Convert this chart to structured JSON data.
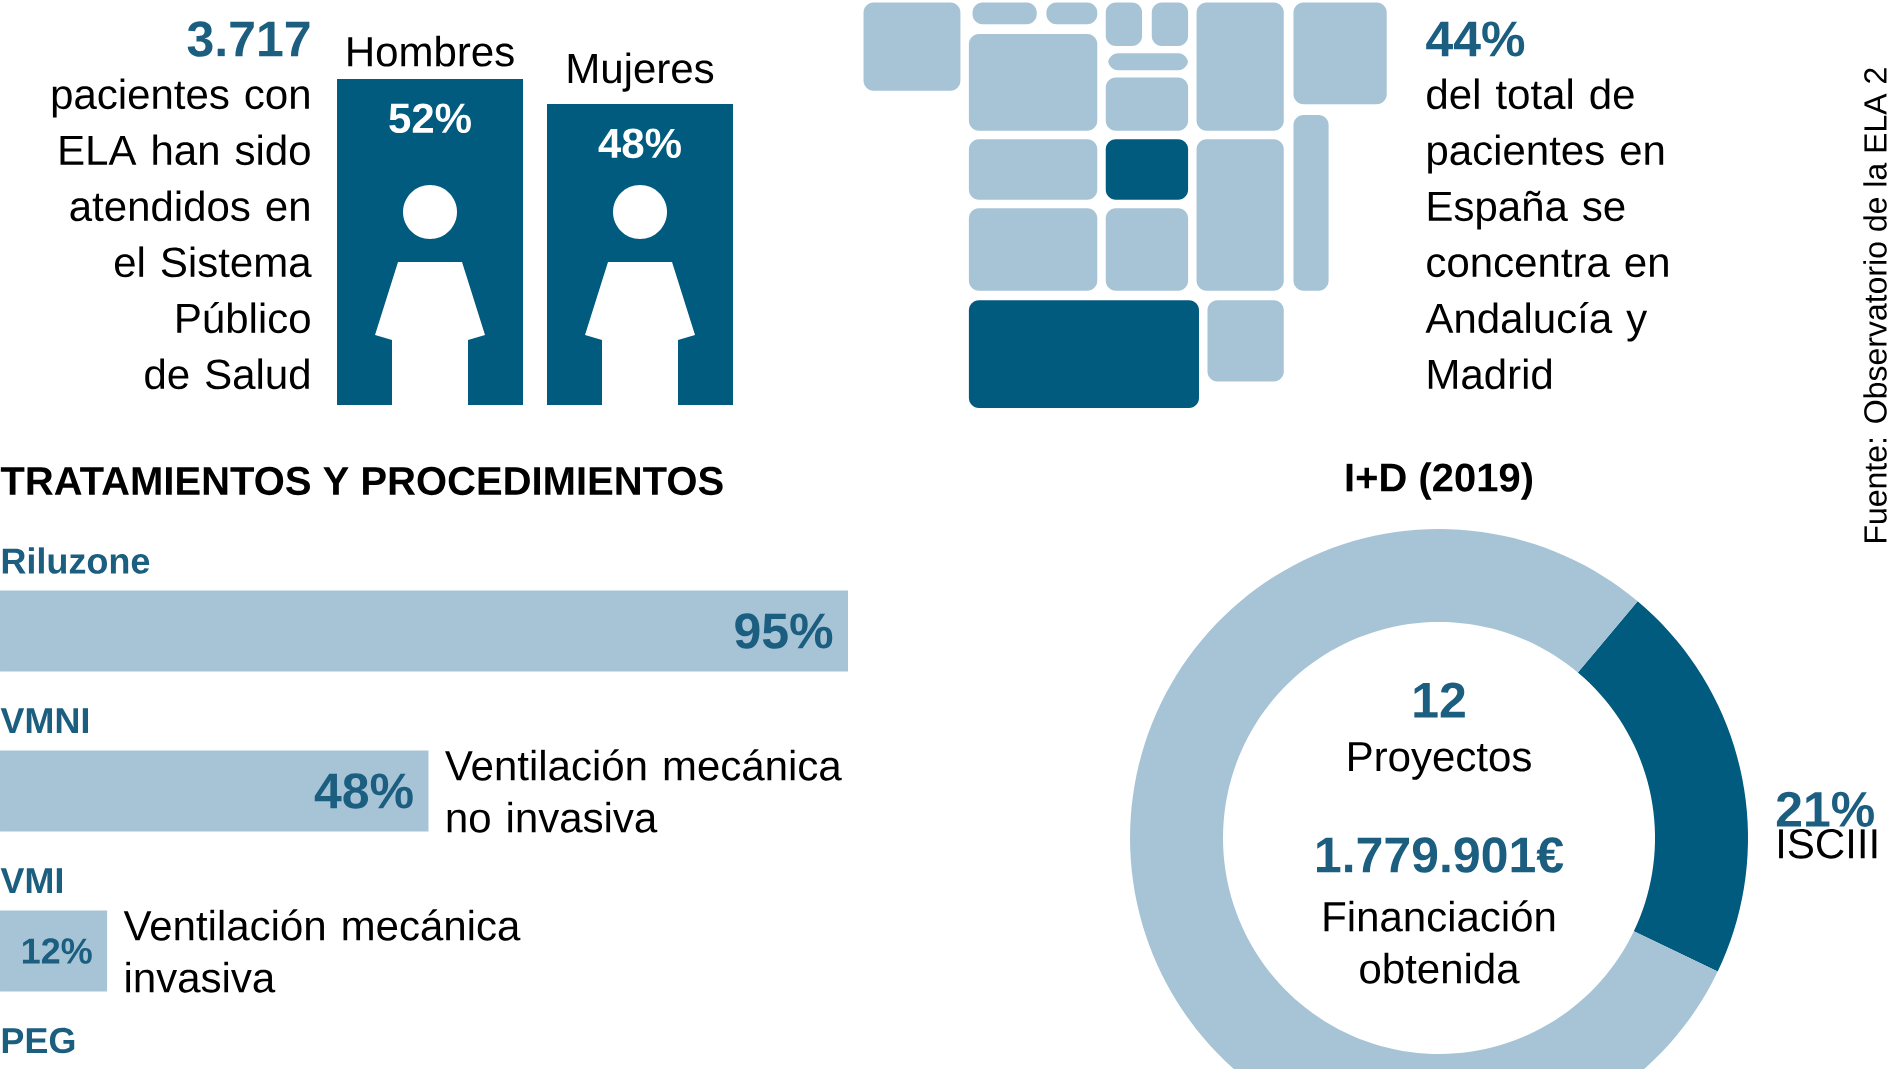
{
  "chart_data": [
    {
      "type": "bar",
      "categories": [
        "Hombres",
        "Mujeres"
      ],
      "values": [
        52,
        48
      ],
      "value_labels": [
        "52%",
        "48%"
      ],
      "color": "#005b7f",
      "annotations": [
        "3.717",
        "pacientes con ELA han sido atendidos en el Sistema Público de Salud"
      ]
    },
    {
      "type": "other",
      "annotations": [
        "44%",
        "del total de pacientes en España se concentra en Andalucía y Madrid"
      ]
    },
    {
      "type": "bar",
      "orientation": "horizontal",
      "title": "TRATAMIENTOS Y PROCEDIMIENTOS",
      "categories": [
        "Riluzone",
        "VMNI",
        "VMI",
        "PEG"
      ],
      "values": [
        95,
        48,
        12,
        null
      ],
      "value_labels": [
        "95%",
        "48%",
        "12%",
        null
      ],
      "color": "#a7c4d6",
      "annotations": [
        "Ventilación mecánica no invasiva",
        "Ventilación mecánica invasiva"
      ]
    },
    {
      "type": "donut",
      "title": "I+D (2019)",
      "categories": [
        "ISCIII",
        null
      ],
      "values": [
        21,
        79
      ],
      "value_labels": [
        "21%",
        null
      ],
      "colors": [
        "#005b7f",
        "#a7c4d6"
      ],
      "annotations": [
        "12",
        "Proyectos",
        "1.779.901€",
        "Financiación obtenida",
        "Fuente: Observatorio de la ELA 2"
      ]
    }
  ]
}
